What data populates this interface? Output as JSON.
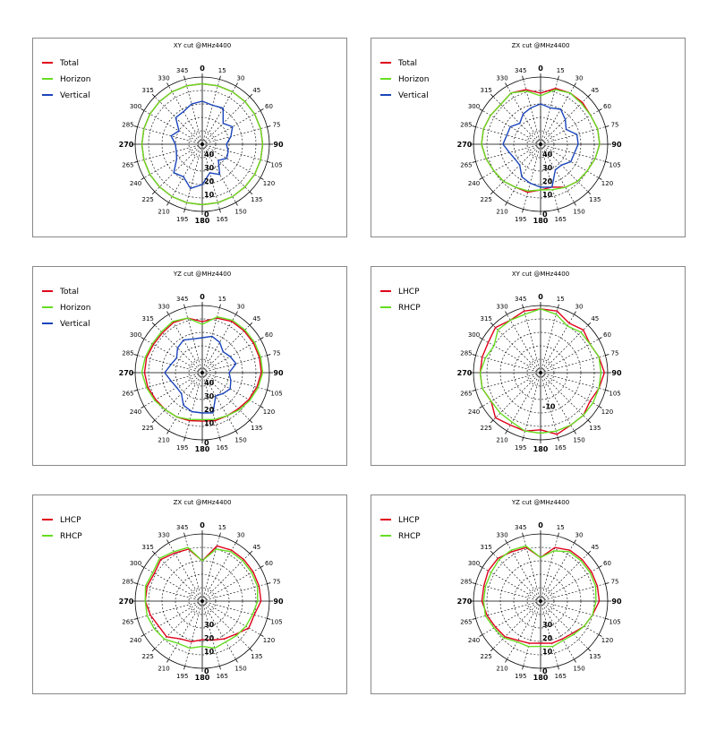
{
  "colors": {
    "Total": "#e0001b",
    "Horizon": "#66dd22",
    "Vertical": "#1a44bb",
    "LHCP": "#e0001b",
    "RHCP": "#66dd22"
  },
  "chart_data": [
    {
      "type": "polar-line",
      "title": "XY cut @MHz4400",
      "angle_labels": [
        "0",
        "15",
        "30",
        "45",
        "60",
        "75",
        "90",
        "105",
        "120",
        "135",
        "150",
        "165",
        "180",
        "195",
        "210",
        "225",
        "240",
        "265",
        "270",
        "285",
        "300",
        "315",
        "330",
        "345"
      ],
      "radial_labels": [
        "40",
        "30",
        "20",
        "10",
        "0"
      ],
      "rlim": [
        -50,
        0
      ],
      "series": [
        {
          "name": "Total",
          "values": [
            -5,
            -5,
            -5,
            -5,
            -5,
            -5,
            -5,
            -5,
            -5,
            -5,
            -5,
            -5,
            -5,
            -5,
            -5,
            -5,
            -5,
            -5,
            -5,
            -5,
            -5,
            -5,
            -5,
            -5
          ]
        },
        {
          "name": "Horizon",
          "values": [
            -5,
            -5,
            -5,
            -5,
            -5,
            -5,
            -5,
            -5,
            -5,
            -5,
            -5,
            -5,
            -5,
            -5,
            -5,
            -5,
            -5,
            -5,
            -5,
            -5,
            -5,
            -5,
            -5,
            -5
          ]
        },
        {
          "name": "Vertical",
          "values": [
            -18,
            -20,
            -19,
            -28,
            -24,
            -28,
            -32,
            -30,
            -29,
            -33,
            -24,
            -28,
            -20,
            -16,
            -22,
            -20,
            -28,
            -30,
            -30,
            -26,
            -30,
            -22,
            -22,
            -19
          ]
        }
      ]
    },
    {
      "type": "polar-line",
      "title": "ZX cut @MHz4400",
      "angle_labels": [
        "0",
        "15",
        "30",
        "45",
        "60",
        "75",
        "90",
        "105",
        "120",
        "135",
        "150",
        "165",
        "180",
        "195",
        "210",
        "225",
        "240",
        "265",
        "270",
        "285",
        "300",
        "315",
        "330",
        "345"
      ],
      "radial_labels": [
        "40",
        "30",
        "20",
        "10",
        "0"
      ],
      "rlim": [
        -50,
        0
      ],
      "series": [
        {
          "name": "Total",
          "values": [
            -12,
            -7,
            -6,
            -6,
            -7,
            -6,
            -6,
            -8,
            -10,
            -11,
            -13,
            -17,
            -16,
            -13,
            -13,
            -11,
            -10,
            -8,
            -6,
            -6,
            -7,
            -8,
            -6,
            -8
          ]
        },
        {
          "name": "Horizon",
          "values": [
            -14,
            -8,
            -6,
            -7,
            -7,
            -6,
            -6,
            -8,
            -10,
            -11,
            -13,
            -15,
            -16,
            -14,
            -13,
            -11,
            -10,
            -8,
            -6,
            -6,
            -7,
            -8,
            -6,
            -9
          ]
        },
        {
          "name": "Vertical",
          "values": [
            -20,
            -22,
            -20,
            -24,
            -28,
            -22,
            -22,
            -24,
            -24,
            -28,
            -28,
            -17,
            -18,
            -20,
            -22,
            -28,
            -28,
            -26,
            -22,
            -24,
            -24,
            -28,
            -24,
            -22
          ]
        }
      ]
    },
    {
      "type": "polar-line",
      "title": "YZ cut @MHz4400",
      "angle_labels": [
        "0",
        "15",
        "30",
        "45",
        "60",
        "75",
        "90",
        "105",
        "120",
        "135",
        "150",
        "165",
        "180",
        "195",
        "210",
        "225",
        "240",
        "265",
        "270",
        "285",
        "300",
        "315",
        "330",
        "345"
      ],
      "radial_labels": [
        "40",
        "30",
        "20",
        "10",
        "0"
      ],
      "rlim": [
        -50,
        0
      ],
      "series": [
        {
          "name": "Total",
          "values": [
            -12,
            -8,
            -6,
            -6,
            -6,
            -6,
            -6,
            -8,
            -10,
            -12,
            -13,
            -13,
            -14,
            -13,
            -12,
            -11,
            -10,
            -8,
            -7,
            -7,
            -8,
            -8,
            -7,
            -8
          ]
        },
        {
          "name": "Horizon",
          "values": [
            -14,
            -7,
            -5,
            -5,
            -5,
            -5,
            -5,
            -7,
            -9,
            -11,
            -13,
            -14,
            -15,
            -14,
            -12,
            -11,
            -9,
            -7,
            -5,
            -6,
            -7,
            -7,
            -6,
            -8
          ]
        },
        {
          "name": "Vertical",
          "values": [
            -24,
            -22,
            -24,
            -28,
            -26,
            -24,
            -30,
            -28,
            -26,
            -28,
            -30,
            -19,
            -20,
            -20,
            -22,
            -28,
            -28,
            -26,
            -22,
            -26,
            -28,
            -24,
            -22,
            -24
          ]
        }
      ]
    },
    {
      "type": "polar-line",
      "title": "XY cut @MHz4400",
      "angle_labels": [
        "0",
        "15",
        "30",
        "45",
        "60",
        "75",
        "90",
        "105",
        "120",
        "135",
        "150",
        "165",
        "180",
        "195",
        "210",
        "225",
        "240",
        "265",
        "270",
        "285",
        "300",
        "315",
        "330",
        "345"
      ],
      "radial_labels": [
        "-10"
      ],
      "rlim": [
        -20,
        0
      ],
      "series": [
        {
          "name": "LHCP",
          "values": [
            -1,
            -1,
            -3,
            -2,
            -3,
            -2,
            -1,
            -2,
            -3,
            -2,
            -2,
            -1,
            -3,
            -2,
            -2,
            -1,
            -3,
            -2,
            -2,
            -2,
            -2,
            -1,
            -2,
            -1
          ]
        },
        {
          "name": "RHCP",
          "values": [
            -1,
            -2,
            -4,
            -3,
            -3,
            -2,
            -2,
            -2,
            -2,
            -2,
            -2,
            -2,
            -2,
            -2,
            -3,
            -3,
            -3,
            -2,
            -2,
            -3,
            -4,
            -2,
            -2,
            -2
          ]
        }
      ]
    },
    {
      "type": "polar-line",
      "title": "ZX cut @MHz4400",
      "angle_labels": [
        "0",
        "15",
        "30",
        "45",
        "60",
        "75",
        "90",
        "105",
        "120",
        "135",
        "150",
        "165",
        "180",
        "195",
        "210",
        "225",
        "240",
        "265",
        "270",
        "285",
        "300",
        "315",
        "330",
        "345"
      ],
      "radial_labels": [
        "30",
        "20",
        "10",
        "0"
      ],
      "rlim": [
        -40,
        0
      ],
      "series": [
        {
          "name": "LHCP",
          "values": [
            -16,
            -6,
            -5,
            -5,
            -5,
            -5,
            -5,
            -8,
            -8,
            -12,
            -14,
            -16,
            -17,
            -15,
            -14,
            -10,
            -10,
            -8,
            -6,
            -6,
            -7,
            -5,
            -7,
            -8
          ]
        },
        {
          "name": "RHCP",
          "values": [
            -16,
            -8,
            -6,
            -6,
            -6,
            -6,
            -7,
            -9,
            -10,
            -11,
            -12,
            -11,
            -13,
            -11,
            -11,
            -8,
            -7,
            -6,
            -6,
            -5,
            -6,
            -4,
            -6,
            -7
          ]
        }
      ]
    },
    {
      "type": "polar-line",
      "title": "YZ cut @MHz4400",
      "angle_labels": [
        "0",
        "15",
        "30",
        "45",
        "60",
        "75",
        "90",
        "105",
        "120",
        "135",
        "150",
        "165",
        "180",
        "195",
        "210",
        "225",
        "240",
        "265",
        "270",
        "285",
        "300",
        "315",
        "330",
        "345"
      ],
      "radial_labels": [
        "30",
        "20",
        "10",
        "0"
      ],
      "rlim": [
        -40,
        0
      ],
      "series": [
        {
          "name": "LHCP",
          "values": [
            -14,
            -7,
            -5,
            -5,
            -5,
            -5,
            -5,
            -8,
            -10,
            -13,
            -14,
            -14,
            -15,
            -14,
            -13,
            -10,
            -9,
            -7,
            -5,
            -5,
            -4,
            -4,
            -6,
            -7
          ]
        },
        {
          "name": "RHCP",
          "values": [
            -14,
            -9,
            -6,
            -6,
            -6,
            -6,
            -7,
            -8,
            -10,
            -12,
            -13,
            -12,
            -13,
            -12,
            -12,
            -9,
            -8,
            -6,
            -6,
            -6,
            -6,
            -5,
            -5,
            -6
          ]
        }
      ]
    }
  ]
}
